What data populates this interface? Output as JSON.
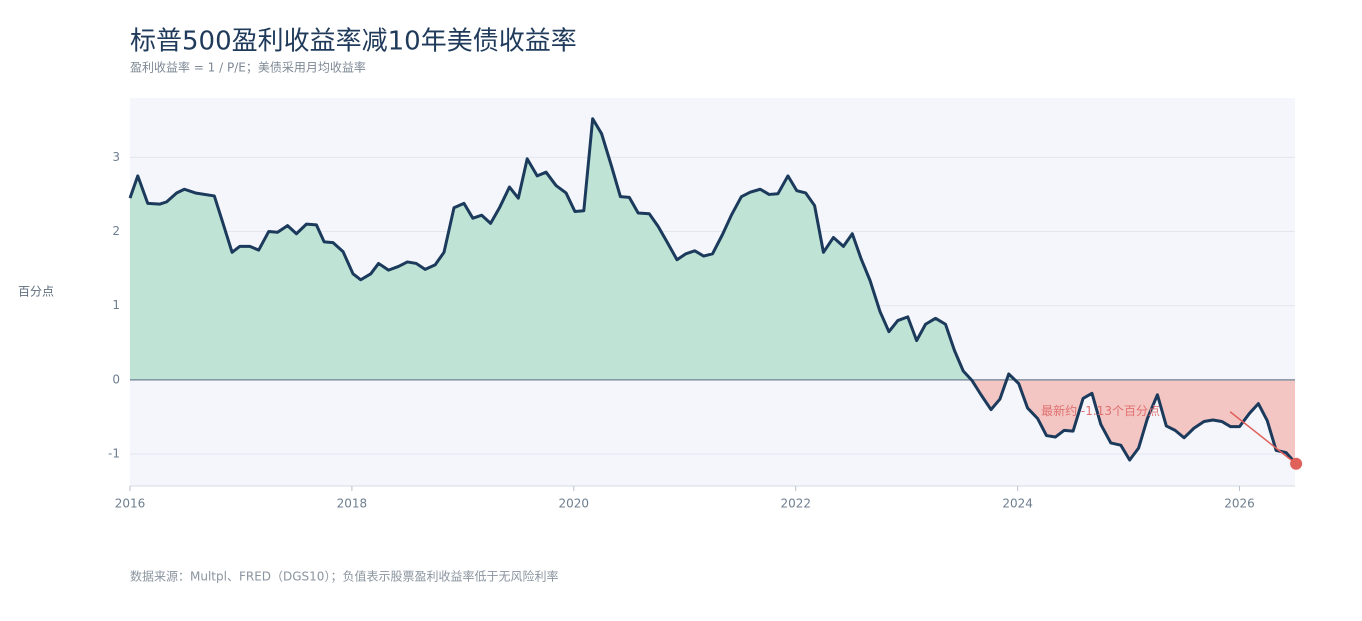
{
  "chart_data": {
    "type": "area",
    "title": "标普500盈利收益率减10年美债收益率",
    "subtitle": "盈利收益率 = 1 / P/E；美债采用月均收益率",
    "y_label": "百分点",
    "footer": "数据来源：Multpl、FRED（DGS10）；负值表示股票盈利收益率低于无风险利率",
    "annotation": "最新约 -1.13个百分点",
    "xlim": [
      2016,
      2026.5
    ],
    "ylim": [
      -1.43,
      3.8
    ],
    "xticks": [
      2016,
      2018,
      2020,
      2022,
      2024,
      2026
    ],
    "yticks": [
      -1,
      0,
      1,
      2,
      3
    ],
    "grid": true,
    "line_color": "#1b3a5c",
    "positive_color": "#bfe3d4",
    "negative_color": "#f3c6c3",
    "marker_color": "#e0605a",
    "series": [
      {
        "x": [
          2016.0,
          2016.07,
          2016.16,
          2016.27,
          2016.33,
          2016.42,
          2016.49,
          2016.59,
          2016.76,
          2016.83,
          2016.92,
          2016.99,
          2017.08,
          2017.16,
          2017.25,
          2017.33,
          2017.42,
          2017.5,
          2017.59,
          2017.68,
          2017.75,
          2017.83,
          2017.92,
          2018.01,
          2018.08,
          2018.17,
          2018.24,
          2018.33,
          2018.42,
          2018.5,
          2018.58,
          2018.66,
          2018.75,
          2018.83,
          2018.92,
          2019.01,
          2019.09,
          2019.17,
          2019.25,
          2019.33,
          2019.42,
          2019.5,
          2019.58,
          2019.67,
          2019.75,
          2019.84,
          2019.93,
          2020.01,
          2020.09,
          2020.17,
          2020.25,
          2020.34,
          2020.42,
          2020.5,
          2020.58,
          2020.68,
          2020.76,
          2020.84,
          2020.93,
          2021.01,
          2021.09,
          2021.17,
          2021.25,
          2021.34,
          2021.42,
          2021.51,
          2021.59,
          2021.68,
          2021.76,
          2021.84,
          2021.93,
          2022.01,
          2022.09,
          2022.17,
          2022.25,
          2022.34,
          2022.43,
          2022.51,
          2022.59,
          2022.67,
          2022.76,
          2022.84,
          2022.92,
          2023.01,
          2023.09,
          2023.17,
          2023.26,
          2023.35,
          2023.43,
          2023.51,
          2023.59,
          2023.67,
          2023.76,
          2023.84,
          2023.92,
          2024.01,
          2024.09,
          2024.18,
          2024.26,
          2024.34,
          2024.42,
          2024.5,
          2024.59,
          2024.67,
          2024.75,
          2024.84,
          2024.93,
          2025.01,
          2025.09,
          2025.17,
          2025.26,
          2025.34,
          2025.42,
          2025.5,
          2025.59,
          2025.68,
          2025.76,
          2025.84,
          2025.92,
          2026.0,
          2026.09,
          2026.17,
          2026.25,
          2026.33,
          2026.42,
          2026.51
        ],
        "values": [
          2.45,
          2.75,
          2.38,
          2.37,
          2.4,
          2.52,
          2.57,
          2.52,
          2.48,
          2.15,
          1.72,
          1.8,
          1.8,
          1.75,
          2.0,
          1.99,
          2.08,
          1.97,
          2.1,
          2.09,
          1.86,
          1.85,
          1.73,
          1.43,
          1.35,
          1.43,
          1.57,
          1.48,
          1.53,
          1.59,
          1.57,
          1.49,
          1.55,
          1.72,
          2.32,
          2.38,
          2.18,
          2.22,
          2.11,
          2.32,
          2.6,
          2.45,
          2.98,
          2.75,
          2.8,
          2.62,
          2.52,
          2.27,
          2.28,
          3.52,
          3.32,
          2.88,
          2.47,
          2.46,
          2.25,
          2.24,
          2.07,
          1.86,
          1.62,
          1.7,
          1.74,
          1.67,
          1.7,
          1.96,
          2.22,
          2.47,
          2.53,
          2.57,
          2.5,
          2.51,
          2.75,
          2.55,
          2.52,
          2.35,
          1.72,
          1.92,
          1.8,
          1.97,
          1.63,
          1.34,
          0.92,
          0.65,
          0.8,
          0.85,
          0.53,
          0.75,
          0.83,
          0.75,
          0.4,
          0.12,
          -0.01,
          -0.2,
          -0.4,
          -0.26,
          0.08,
          -0.05,
          -0.38,
          -0.52,
          -0.75,
          -0.77,
          -0.68,
          -0.69,
          -0.25,
          -0.18,
          -0.6,
          -0.85,
          -0.88,
          -1.08,
          -0.92,
          -0.52,
          -0.2,
          -0.62,
          -0.68,
          -0.78,
          -0.65,
          -0.56,
          -0.54,
          -0.56,
          -0.63,
          -0.63,
          -0.45,
          -0.32,
          -0.55,
          -0.95,
          -0.98,
          -1.13
        ]
      }
    ]
  }
}
